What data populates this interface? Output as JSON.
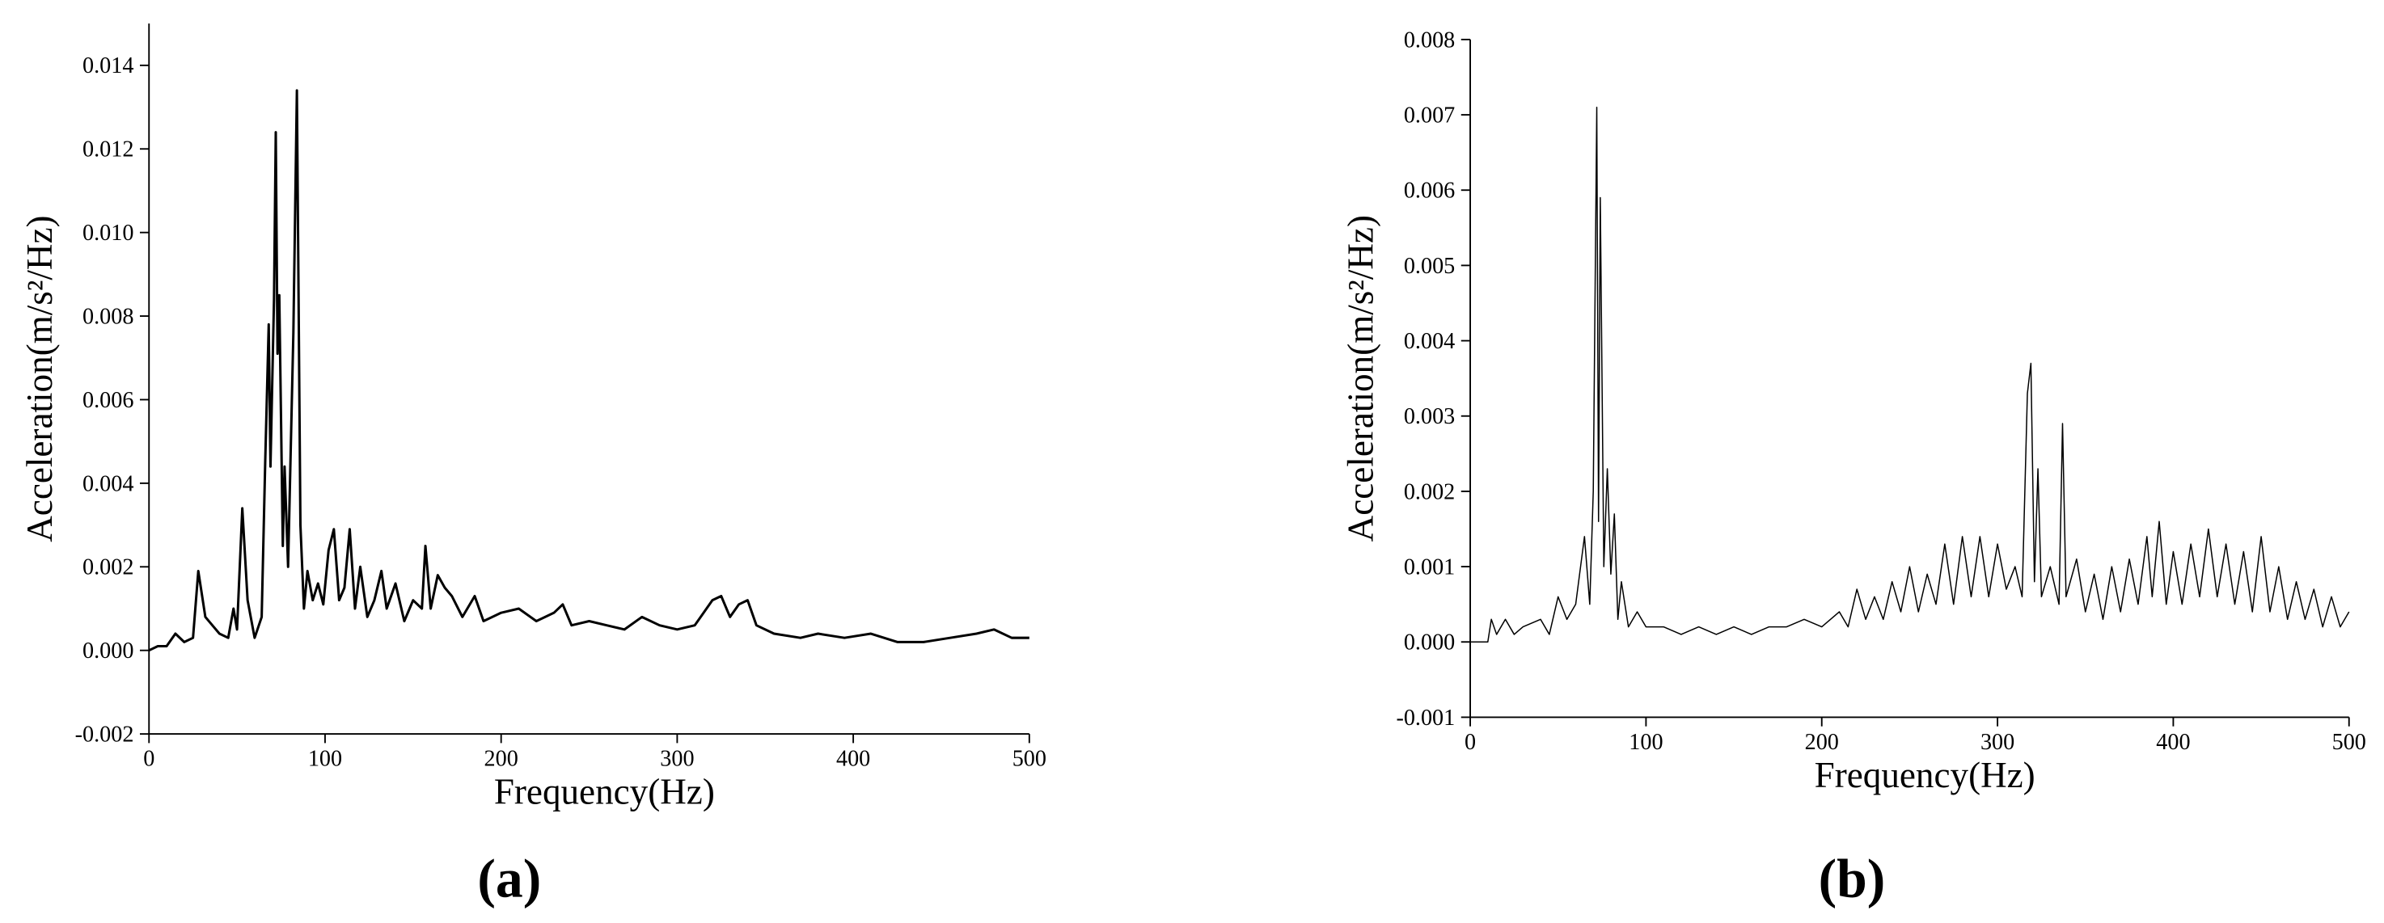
{
  "chart_data": [
    {
      "type": "line",
      "label": "(a)",
      "x_label": "Frequency(Hz)",
      "y_label": "Acceleration(m/s²/Hz)",
      "xlim": [
        0,
        500
      ],
      "xticks": [
        0,
        100,
        200,
        300,
        400,
        500
      ],
      "ylim": [
        -0.002,
        0.015
      ],
      "yticks": [
        -0.002,
        {
          "value": 0,
          "label": "0.000"
        },
        0.002,
        0.004,
        0.006,
        0.008,
        {
          "value": 0.01,
          "label": "0.010"
        },
        0.012,
        0.014
      ],
      "series": [
        {
          "color": "#000000",
          "x": [
            0,
            5,
            10,
            15,
            20,
            25,
            28,
            32,
            36,
            40,
            45,
            48,
            50,
            53,
            56,
            60,
            64,
            66,
            68,
            69,
            71,
            72,
            73,
            74,
            76,
            77,
            79,
            82,
            84,
            86,
            88,
            90,
            93,
            96,
            99,
            102,
            105,
            108,
            111,
            114,
            117,
            120,
            124,
            128,
            132,
            135,
            140,
            145,
            150,
            155,
            157,
            160,
            164,
            168,
            172,
            178,
            185,
            190,
            200,
            210,
            220,
            230,
            235,
            240,
            250,
            260,
            270,
            280,
            290,
            300,
            310,
            320,
            325,
            330,
            335,
            340,
            345,
            355,
            370,
            380,
            395,
            410,
            425,
            440,
            455,
            470,
            480,
            490,
            500
          ],
          "values": [
            0.0,
            0.0001,
            0.0001,
            0.0004,
            0.0002,
            0.0003,
            0.0019,
            0.0008,
            0.0006,
            0.0004,
            0.0003,
            0.001,
            0.0005,
            0.0034,
            0.0012,
            0.0003,
            0.0008,
            0.0045,
            0.0078,
            0.0044,
            0.0084,
            0.0124,
            0.0071,
            0.0085,
            0.0025,
            0.0044,
            0.002,
            0.0076,
            0.0134,
            0.003,
            0.001,
            0.0019,
            0.0012,
            0.0016,
            0.0011,
            0.0024,
            0.0029,
            0.0012,
            0.0015,
            0.0029,
            0.001,
            0.002,
            0.0008,
            0.0012,
            0.0019,
            0.001,
            0.0016,
            0.0007,
            0.0012,
            0.001,
            0.0025,
            0.001,
            0.0018,
            0.0015,
            0.0013,
            0.0008,
            0.0013,
            0.0007,
            0.0009,
            0.001,
            0.0007,
            0.0009,
            0.0011,
            0.0006,
            0.0007,
            0.0006,
            0.0005,
            0.0008,
            0.0006,
            0.0005,
            0.0006,
            0.0012,
            0.0013,
            0.0008,
            0.0011,
            0.0012,
            0.0006,
            0.0004,
            0.0003,
            0.0004,
            0.0003,
            0.0004,
            0.0002,
            0.0002,
            0.0003,
            0.0004,
            0.0005,
            0.0003,
            0.0003
          ]
        }
      ]
    },
    {
      "type": "line",
      "label": "(b)",
      "x_label": "Frequency(Hz)",
      "y_label": "Acceleration(m/s²/Hz)",
      "xlim": [
        0,
        500
      ],
      "xticks": [
        0,
        100,
        200,
        300,
        400,
        500
      ],
      "ylim": [
        -0.001,
        0.008
      ],
      "yticks": [
        -0.001,
        {
          "value": 0,
          "label": "0.000"
        },
        0.001,
        0.002,
        0.003,
        0.004,
        0.005,
        0.006,
        0.007,
        0.008
      ],
      "series": [
        {
          "color": "#000000",
          "x": [
            0,
            10,
            12,
            15,
            20,
            25,
            30,
            40,
            45,
            50,
            55,
            60,
            65,
            68,
            70,
            72,
            73,
            74,
            76,
            78,
            80,
            82,
            84,
            86,
            90,
            95,
            100,
            110,
            120,
            130,
            140,
            150,
            160,
            170,
            180,
            190,
            200,
            210,
            215,
            220,
            225,
            230,
            235,
            240,
            245,
            250,
            255,
            260,
            265,
            270,
            275,
            280,
            285,
            290,
            295,
            300,
            305,
            310,
            314,
            317,
            319,
            321,
            323,
            325,
            330,
            335,
            337,
            339,
            345,
            350,
            355,
            360,
            365,
            370,
            375,
            380,
            385,
            388,
            392,
            396,
            400,
            405,
            410,
            415,
            420,
            425,
            430,
            435,
            440,
            445,
            450,
            455,
            460,
            465,
            470,
            475,
            480,
            485,
            490,
            495,
            500
          ],
          "values": [
            0.0,
            0.0,
            0.0003,
            0.0001,
            0.0003,
            0.0001,
            0.0002,
            0.0003,
            0.0001,
            0.0006,
            0.0003,
            0.0005,
            0.0014,
            0.0005,
            0.002,
            0.0071,
            0.0016,
            0.0059,
            0.001,
            0.0023,
            0.0009,
            0.0017,
            0.0003,
            0.0008,
            0.0002,
            0.0004,
            0.0002,
            0.0002,
            0.0001,
            0.0002,
            0.0001,
            0.0002,
            0.0001,
            0.0002,
            0.0002,
            0.0003,
            0.0002,
            0.0004,
            0.0002,
            0.0007,
            0.0003,
            0.0006,
            0.0003,
            0.0008,
            0.0004,
            0.001,
            0.0004,
            0.0009,
            0.0005,
            0.0013,
            0.0005,
            0.0014,
            0.0006,
            0.0014,
            0.0006,
            0.0013,
            0.0007,
            0.001,
            0.0006,
            0.0033,
            0.0037,
            0.0008,
            0.0023,
            0.0006,
            0.001,
            0.0005,
            0.0029,
            0.0006,
            0.0011,
            0.0004,
            0.0009,
            0.0003,
            0.001,
            0.0004,
            0.0011,
            0.0005,
            0.0014,
            0.0006,
            0.0016,
            0.0005,
            0.0012,
            0.0005,
            0.0013,
            0.0006,
            0.0015,
            0.0006,
            0.0013,
            0.0005,
            0.0012,
            0.0004,
            0.0014,
            0.0004,
            0.001,
            0.0003,
            0.0008,
            0.0003,
            0.0007,
            0.0002,
            0.0006,
            0.0002,
            0.0004
          ]
        }
      ]
    }
  ]
}
